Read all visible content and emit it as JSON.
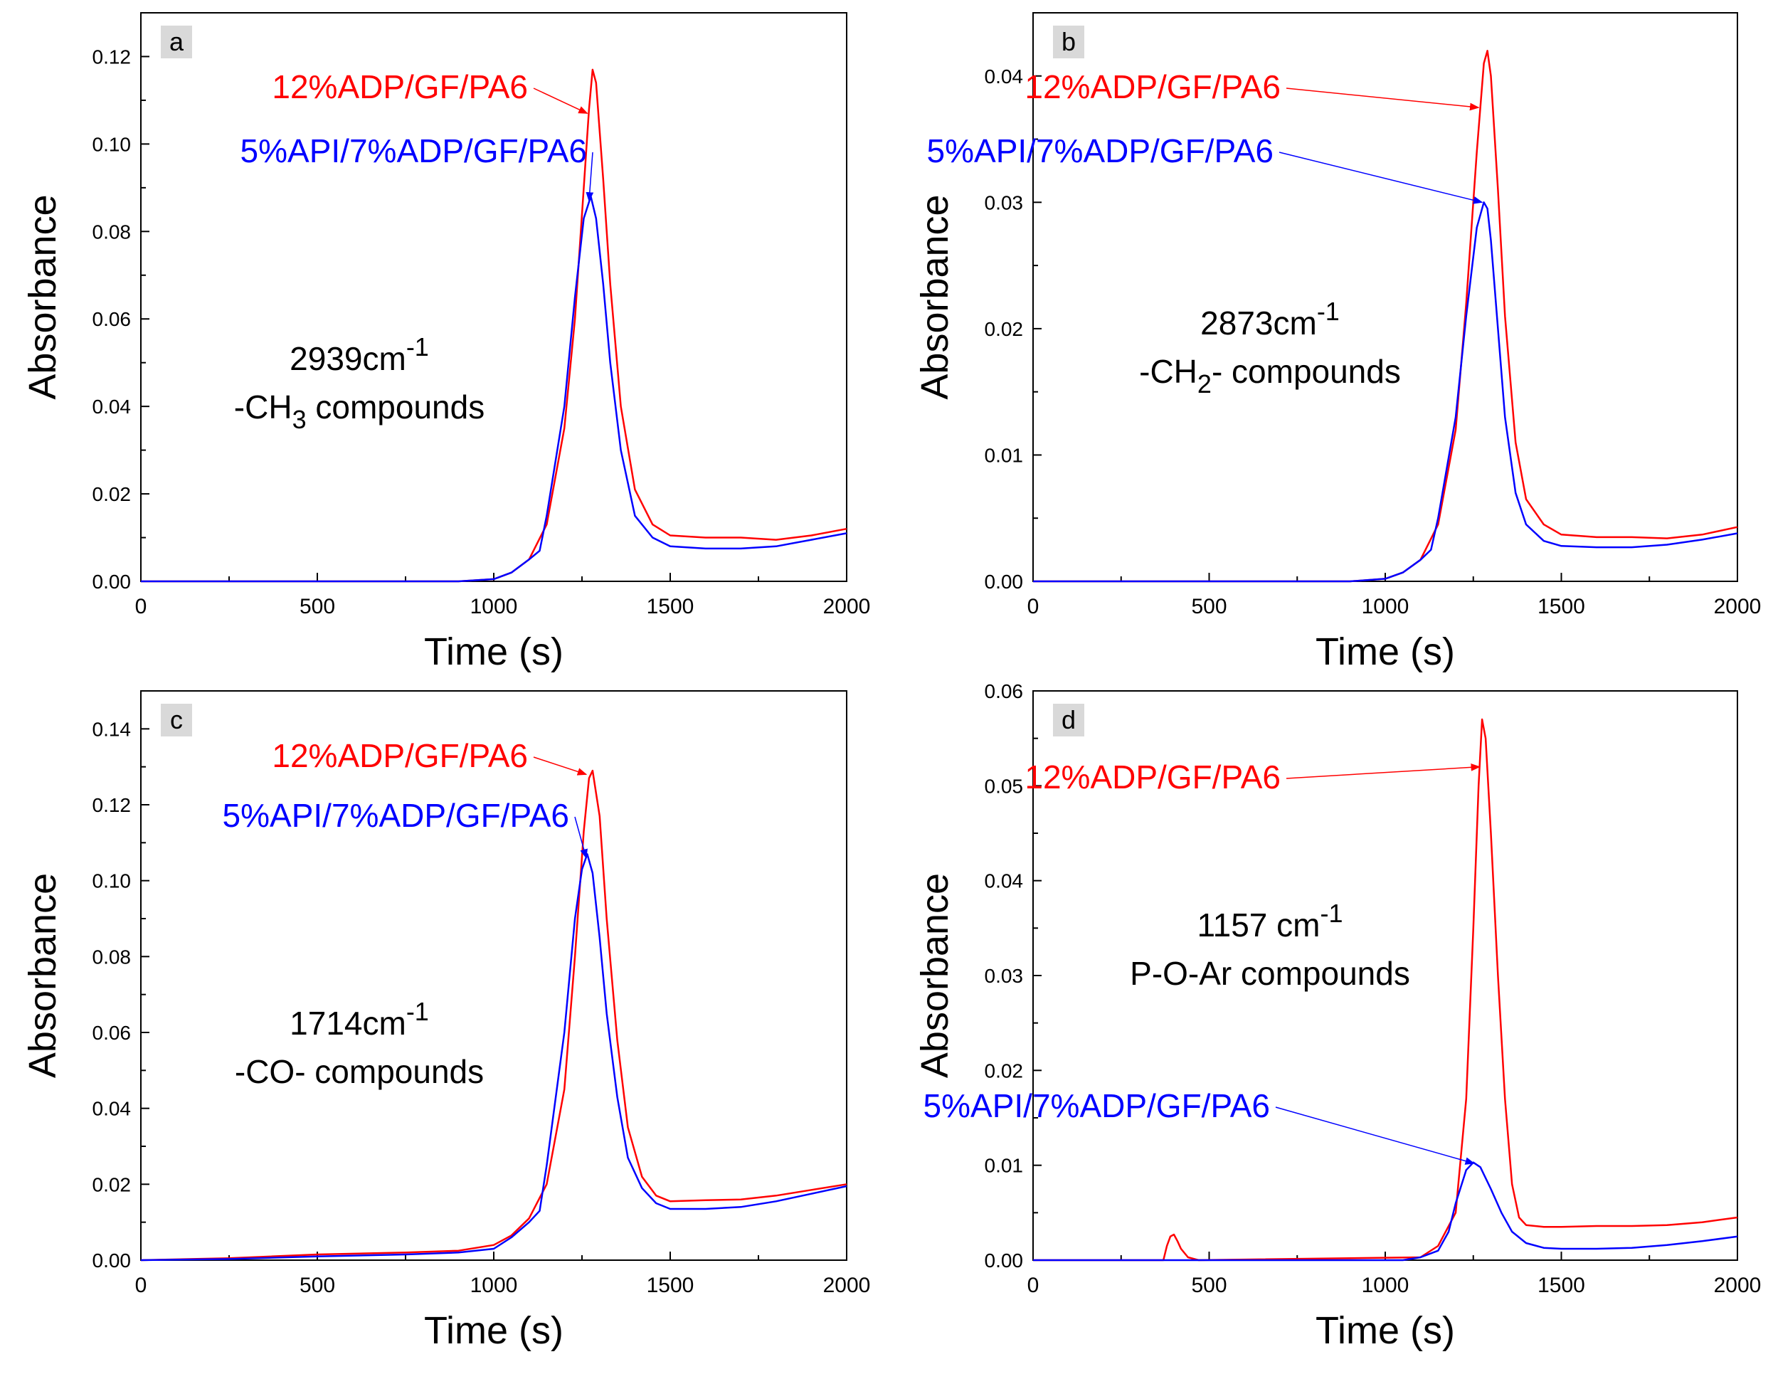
{
  "colors": {
    "series_12ADP": "#ff0000",
    "series_5API": "#0000ff",
    "axis": "#000000",
    "panel_label_bg": "#d9d9d9"
  },
  "chart_data": [
    {
      "type": "line",
      "panel_label": "a",
      "title": "",
      "xlabel": "Time (s)",
      "ylabel": "Absorbance",
      "xlim": [
        0,
        2000
      ],
      "ylim": [
        0,
        0.13
      ],
      "xticks": [
        0,
        500,
        1000,
        1500,
        2000
      ],
      "xtick_labels": [
        "0",
        "500",
        "1000",
        "1500",
        "2000"
      ],
      "yticks": [
        0,
        0.02,
        0.04,
        0.06,
        0.08,
        0.1,
        0.12
      ],
      "ytick_labels": [
        "0.00",
        "0.02",
        "0.04",
        "0.06",
        "0.08",
        "0.10",
        "0.12"
      ],
      "annotation": {
        "wavenumber": "2939cm",
        "superscript": "-1",
        "group_prefix": "-CH",
        "group_subscript": "3",
        "group_suffix": " compounds"
      },
      "series": [
        {
          "name": "12%ADP/GF/PA6",
          "color": "#ff0000",
          "x": [
            0,
            900,
            1000,
            1050,
            1100,
            1150,
            1200,
            1230,
            1255,
            1270,
            1280,
            1290,
            1310,
            1330,
            1360,
            1400,
            1450,
            1500,
            1600,
            1700,
            1800,
            1900,
            2000
          ],
          "y": [
            0,
            0,
            0.0005,
            0.002,
            0.005,
            0.013,
            0.035,
            0.06,
            0.09,
            0.108,
            0.117,
            0.114,
            0.092,
            0.068,
            0.04,
            0.021,
            0.013,
            0.0105,
            0.01,
            0.01,
            0.0095,
            0.0105,
            0.012
          ]
        },
        {
          "name": "5%API/7%ADP/GF/PA6",
          "color": "#0000ff",
          "x": [
            0,
            900,
            1000,
            1050,
            1100,
            1130,
            1150,
            1200,
            1230,
            1255,
            1275,
            1290,
            1310,
            1330,
            1360,
            1400,
            1450,
            1500,
            1600,
            1700,
            1800,
            1900,
            2000
          ],
          "y": [
            0,
            0,
            0.0005,
            0.002,
            0.005,
            0.007,
            0.015,
            0.04,
            0.065,
            0.083,
            0.088,
            0.083,
            0.068,
            0.05,
            0.03,
            0.015,
            0.01,
            0.008,
            0.0075,
            0.0075,
            0.008,
            0.0095,
            0.011
          ]
        }
      ],
      "labels": [
        {
          "text": "12%ADP/GF/PA6",
          "series": 0,
          "arrow_to": [
            1265,
            0.107
          ]
        },
        {
          "text": "5%API/7%ADP/GF/PA6",
          "series": 1,
          "arrow_to": [
            1270,
            0.087
          ]
        }
      ]
    },
    {
      "type": "line",
      "panel_label": "b",
      "title": "",
      "xlabel": "Time (s)",
      "ylabel": "Absorbance",
      "xlim": [
        0,
        2000
      ],
      "ylim": [
        0,
        0.045
      ],
      "xticks": [
        0,
        500,
        1000,
        1500,
        2000
      ],
      "xtick_labels": [
        "0",
        "500",
        "1000",
        "1500",
        "2000"
      ],
      "yticks": [
        0,
        0.01,
        0.02,
        0.03,
        0.04
      ],
      "ytick_labels": [
        "0.00",
        "0.01",
        "0.02",
        "0.03",
        "0.04"
      ],
      "annotation": {
        "wavenumber": "2873cm",
        "superscript": "-1",
        "group_prefix": "-CH",
        "group_subscript": "2",
        "group_suffix": "- compounds"
      },
      "series": [
        {
          "name": "12%ADP/GF/PA6",
          "color": "#ff0000",
          "x": [
            0,
            900,
            1000,
            1050,
            1100,
            1150,
            1200,
            1230,
            1260,
            1280,
            1290,
            1300,
            1320,
            1340,
            1370,
            1400,
            1450,
            1500,
            1600,
            1700,
            1800,
            1900,
            2000
          ],
          "y": [
            0,
            0,
            0.0002,
            0.0007,
            0.0017,
            0.0045,
            0.012,
            0.022,
            0.034,
            0.041,
            0.042,
            0.04,
            0.031,
            0.021,
            0.011,
            0.0065,
            0.0045,
            0.0037,
            0.0035,
            0.0035,
            0.0034,
            0.0037,
            0.0043
          ]
        },
        {
          "name": "5%API/7%ADP/GF/PA6",
          "color": "#0000ff",
          "x": [
            0,
            900,
            1000,
            1050,
            1100,
            1130,
            1150,
            1200,
            1230,
            1260,
            1280,
            1290,
            1300,
            1320,
            1340,
            1370,
            1400,
            1450,
            1500,
            1600,
            1700,
            1800,
            1900,
            2000
          ],
          "y": [
            0,
            0,
            0.0002,
            0.0007,
            0.0017,
            0.0025,
            0.005,
            0.013,
            0.021,
            0.028,
            0.03,
            0.0295,
            0.027,
            0.02,
            0.013,
            0.007,
            0.0045,
            0.0032,
            0.0028,
            0.0027,
            0.0027,
            0.0029,
            0.0033,
            0.0038
          ]
        }
      ],
      "labels": [
        {
          "text": "12%ADP/GF/PA6",
          "series": 0,
          "arrow_to": [
            1265,
            0.0375
          ]
        },
        {
          "text": "5%API/7%ADP/GF/PA6",
          "series": 1,
          "arrow_to": [
            1275,
            0.03
          ]
        }
      ]
    },
    {
      "type": "line",
      "panel_label": "c",
      "title": "",
      "xlabel": "Time (s)",
      "ylabel": "Absorbance",
      "xlim": [
        0,
        2000
      ],
      "ylim": [
        0,
        0.15
      ],
      "xticks": [
        0,
        500,
        1000,
        1500,
        2000
      ],
      "xtick_labels": [
        "0",
        "500",
        "1000",
        "1500",
        "2000"
      ],
      "yticks": [
        0,
        0.02,
        0.04,
        0.06,
        0.08,
        0.1,
        0.12,
        0.14
      ],
      "ytick_labels": [
        "0.00",
        "0.02",
        "0.04",
        "0.06",
        "0.08",
        "0.10",
        "0.12",
        "0.14"
      ],
      "annotation": {
        "wavenumber": "1714cm",
        "superscript": "-1",
        "group_prefix": "-CO- compounds",
        "group_subscript": "",
        "group_suffix": ""
      },
      "series": [
        {
          "name": "12%ADP/GF/PA6",
          "color": "#ff0000",
          "x": [
            0,
            250,
            500,
            750,
            900,
            1000,
            1050,
            1100,
            1150,
            1200,
            1230,
            1255,
            1270,
            1280,
            1300,
            1320,
            1350,
            1380,
            1420,
            1460,
            1500,
            1600,
            1700,
            1800,
            1900,
            2000
          ],
          "y": [
            0,
            0.0005,
            0.0015,
            0.002,
            0.0025,
            0.004,
            0.0065,
            0.011,
            0.02,
            0.045,
            0.08,
            0.113,
            0.127,
            0.129,
            0.117,
            0.09,
            0.058,
            0.035,
            0.022,
            0.017,
            0.0155,
            0.0158,
            0.016,
            0.017,
            0.0185,
            0.02
          ]
        },
        {
          "name": "5%API/7%ADP/GF/PA6",
          "color": "#0000ff",
          "x": [
            0,
            250,
            500,
            750,
            900,
            1000,
            1050,
            1100,
            1130,
            1150,
            1200,
            1230,
            1250,
            1265,
            1280,
            1300,
            1320,
            1350,
            1380,
            1420,
            1460,
            1500,
            1600,
            1700,
            1800,
            1900,
            2000
          ],
          "y": [
            0,
            0.0003,
            0.001,
            0.0015,
            0.002,
            0.003,
            0.006,
            0.01,
            0.013,
            0.025,
            0.06,
            0.09,
            0.103,
            0.107,
            0.102,
            0.085,
            0.065,
            0.043,
            0.027,
            0.019,
            0.015,
            0.0135,
            0.0135,
            0.014,
            0.0155,
            0.0175,
            0.0195
          ]
        }
      ],
      "labels": [
        {
          "text": "12%ADP/GF/PA6",
          "series": 0,
          "arrow_to": [
            1262,
            0.128
          ]
        },
        {
          "text": "5%API/7%ADP/GF/PA6",
          "series": 1,
          "arrow_to": [
            1262,
            0.106
          ]
        }
      ]
    },
    {
      "type": "line",
      "panel_label": "d",
      "title": "",
      "xlabel": "Time (s)",
      "ylabel": "Absorbance",
      "xlim": [
        0,
        2000
      ],
      "ylim": [
        0,
        0.06
      ],
      "xticks": [
        0,
        500,
        1000,
        1500,
        2000
      ],
      "xtick_labels": [
        "0",
        "500",
        "1000",
        "1500",
        "2000"
      ],
      "yticks": [
        0,
        0.01,
        0.02,
        0.03,
        0.04,
        0.05,
        0.06
      ],
      "ytick_labels": [
        "0.00",
        "0.01",
        "0.02",
        "0.03",
        "0.04",
        "0.05",
        "0.06"
      ],
      "annotation": {
        "wavenumber": "1157 cm",
        "superscript": "-1",
        "group_prefix": "P-O-Ar compounds",
        "group_subscript": "",
        "group_suffix": ""
      },
      "series": [
        {
          "name": "12%ADP/GF/PA6",
          "color": "#ff0000",
          "x": [
            0,
            370,
            380,
            390,
            400,
            410,
            420,
            440,
            470,
            1100,
            1150,
            1200,
            1230,
            1250,
            1265,
            1275,
            1285,
            1300,
            1320,
            1340,
            1360,
            1380,
            1400,
            1450,
            1500,
            1600,
            1700,
            1800,
            1900,
            2000
          ],
          "y": [
            0,
            0,
            0.0015,
            0.0025,
            0.0027,
            0.002,
            0.0012,
            0.0003,
            0,
            0.0003,
            0.0015,
            0.005,
            0.017,
            0.035,
            0.05,
            0.057,
            0.055,
            0.045,
            0.03,
            0.017,
            0.008,
            0.0045,
            0.0037,
            0.0035,
            0.0035,
            0.0036,
            0.0036,
            0.0037,
            0.004,
            0.0045
          ]
        },
        {
          "name": "5%API/7%ADP/GF/PA6",
          "color": "#0000ff",
          "x": [
            0,
            1050,
            1100,
            1150,
            1180,
            1200,
            1230,
            1250,
            1270,
            1300,
            1330,
            1360,
            1400,
            1450,
            1500,
            1600,
            1700,
            1800,
            1900,
            2000
          ],
          "y": [
            0,
            0,
            0.0003,
            0.001,
            0.003,
            0.006,
            0.0095,
            0.0103,
            0.0098,
            0.0075,
            0.005,
            0.003,
            0.0018,
            0.0013,
            0.0012,
            0.0012,
            0.0013,
            0.0016,
            0.002,
            0.0025
          ]
        }
      ],
      "labels": [
        {
          "text": "12%ADP/GF/PA6",
          "series": 0,
          "arrow_to": [
            1268,
            0.052
          ]
        },
        {
          "text": "5%API/7%ADP/GF/PA6",
          "series": 1,
          "arrow_to": [
            1252,
            0.0102
          ]
        }
      ]
    }
  ]
}
